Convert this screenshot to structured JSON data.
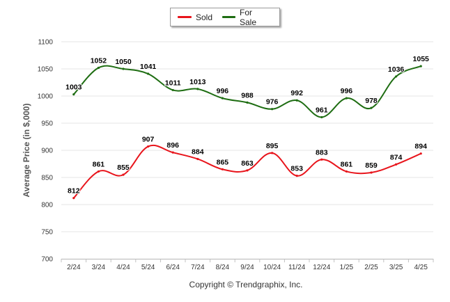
{
  "chart_data": {
    "type": "line",
    "title": "",
    "xlabel": "",
    "ylabel": "Average Price (in $,000)",
    "ylim": [
      700,
      1100
    ],
    "yticks": [
      700,
      750,
      800,
      850,
      900,
      950,
      1000,
      1050,
      1100
    ],
    "grid": "horizontal",
    "legend": "top-center",
    "categories": [
      "2/24",
      "3/24",
      "4/24",
      "5/24",
      "6/24",
      "7/24",
      "8/24",
      "9/24",
      "10/24",
      "11/24",
      "12/24",
      "1/25",
      "2/25",
      "3/25",
      "4/25"
    ],
    "series": [
      {
        "name": "Sold",
        "color": "#e8141b",
        "values": [
          812,
          861,
          855,
          907,
          896,
          884,
          865,
          863,
          895,
          853,
          883,
          861,
          859,
          874,
          894
        ]
      },
      {
        "name": "For Sale",
        "color": "#1e6d12",
        "values": [
          1003,
          1052,
          1050,
          1041,
          1011,
          1013,
          996,
          988,
          976,
          992,
          961,
          996,
          978,
          1036,
          1055
        ]
      }
    ]
  },
  "credit": "Copyright © Trendgraphix, Inc."
}
